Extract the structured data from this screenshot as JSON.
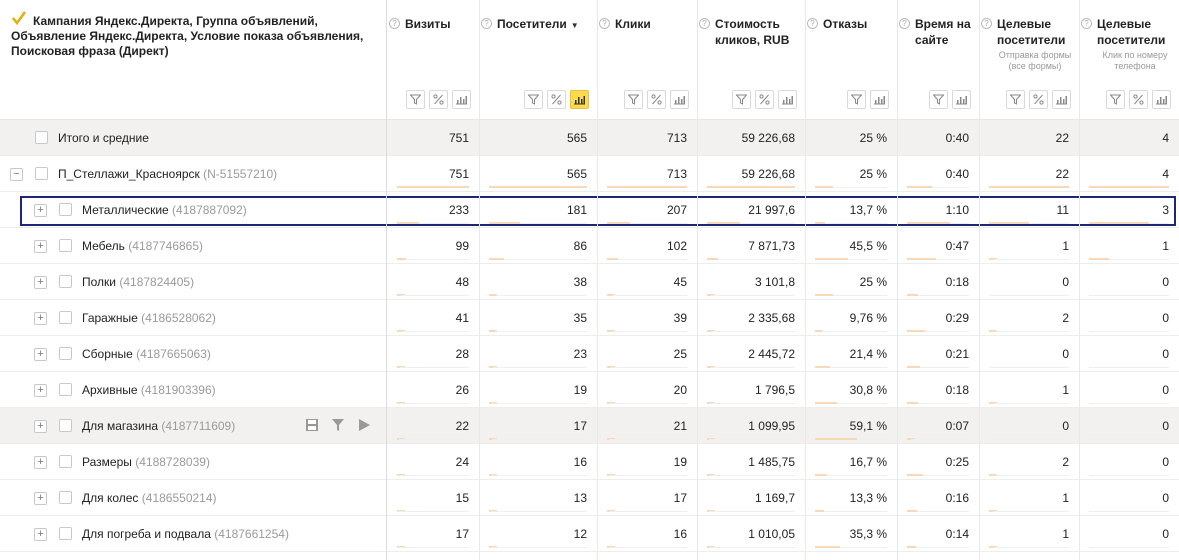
{
  "dimension_header": "Кампания Яндекс.Директа, Группа объявлений, Объявление Яндекс.Директа, Условие показа объявления, Поисковая фраза (Директ)",
  "metrics": [
    {
      "key": "visits",
      "title": "Визиты",
      "sub": ""
    },
    {
      "key": "visitors",
      "title": "Посетители",
      "sub": "",
      "sort": "▼"
    },
    {
      "key": "clicks",
      "title": "Клики",
      "sub": ""
    },
    {
      "key": "cost",
      "title": "Стоимость кликов, RUB",
      "sub": ""
    },
    {
      "key": "bounce",
      "title": "Отказы",
      "sub": ""
    },
    {
      "key": "time",
      "title": "Время на сайте",
      "sub": ""
    },
    {
      "key": "goal1",
      "title": "Целевые посетители",
      "sub": "Отправка формы (все формы)"
    },
    {
      "key": "goal2",
      "title": "Целевые посетители",
      "sub": "Клик по номеру телефона"
    }
  ],
  "rows": [
    {
      "type": "total",
      "name": "Итого и средние",
      "id": "",
      "values": [
        "751",
        "565",
        "713",
        "59 226,68",
        "25 %",
        "0:40",
        "22",
        "4"
      ],
      "fill": [
        1,
        1,
        1,
        1,
        0.25,
        0.4,
        1,
        1
      ]
    },
    {
      "type": "campaign",
      "name": "П_Стеллажи_Красноярск",
      "id": "(N-51557210)",
      "toggle": "−",
      "values": [
        "751",
        "565",
        "713",
        "59 226,68",
        "25 %",
        "0:40",
        "22",
        "4"
      ],
      "fill": [
        1,
        1,
        1,
        1,
        0.25,
        0.4,
        1,
        1
      ]
    },
    {
      "type": "group",
      "name": "Металлические",
      "id": "(4187887092)",
      "toggle": "+",
      "selected": true,
      "values": [
        "233",
        "181",
        "207",
        "21 997,6",
        "13,7 %",
        "1:10",
        "11",
        "3"
      ],
      "fill": [
        0.31,
        0.32,
        0.29,
        0.37,
        0.14,
        0.7,
        0.5,
        0.75
      ]
    },
    {
      "type": "group",
      "name": "Мебель",
      "id": "(4187746865)",
      "toggle": "+",
      "values": [
        "99",
        "86",
        "102",
        "7 871,73",
        "45,5 %",
        "0:47",
        "1",
        "1"
      ],
      "fill": [
        0.13,
        0.15,
        0.14,
        0.13,
        0.46,
        0.47,
        0.05,
        0.25
      ]
    },
    {
      "type": "group",
      "name": "Полки",
      "id": "(4187824405)",
      "toggle": "+",
      "values": [
        "48",
        "38",
        "45",
        "3 101,8",
        "25 %",
        "0:18",
        "0",
        "0"
      ],
      "fill": [
        0.06,
        0.07,
        0.06,
        0.05,
        0.25,
        0.18,
        0,
        0
      ]
    },
    {
      "type": "group",
      "name": "Гаражные",
      "id": "(4186528062)",
      "toggle": "+",
      "values": [
        "41",
        "35",
        "39",
        "2 335,68",
        "9,76 %",
        "0:29",
        "2",
        "0"
      ],
      "fill": [
        0.05,
        0.06,
        0.05,
        0.04,
        0.1,
        0.29,
        0.09,
        0
      ]
    },
    {
      "type": "group",
      "name": "Сборные",
      "id": "(4187665063)",
      "toggle": "+",
      "values": [
        "28",
        "23",
        "25",
        "2 445,72",
        "21,4 %",
        "0:21",
        "0",
        "0"
      ],
      "fill": [
        0.04,
        0.04,
        0.04,
        0.04,
        0.21,
        0.21,
        0,
        0
      ]
    },
    {
      "type": "group",
      "name": "Архивные",
      "id": "(4181903396)",
      "toggle": "+",
      "values": [
        "26",
        "19",
        "20",
        "1 796,5",
        "30,8 %",
        "0:18",
        "1",
        "0"
      ],
      "fill": [
        0.03,
        0.03,
        0.03,
        0.03,
        0.31,
        0.18,
        0.05,
        0
      ]
    },
    {
      "type": "group",
      "name": "Для магазина",
      "id": "(4187711609)",
      "toggle": "+",
      "hover": true,
      "values": [
        "22",
        "17",
        "21",
        "1 099,95",
        "59,1 %",
        "0:07",
        "0",
        "0"
      ],
      "fill": [
        0.03,
        0.03,
        0.03,
        0.02,
        0.59,
        0.07,
        0,
        0
      ]
    },
    {
      "type": "group",
      "name": "Размеры",
      "id": "(4188728039)",
      "toggle": "+",
      "values": [
        "24",
        "16",
        "19",
        "1 485,75",
        "16,7 %",
        "0:25",
        "2",
        "0"
      ],
      "fill": [
        0.03,
        0.03,
        0.03,
        0.03,
        0.17,
        0.25,
        0.09,
        0
      ]
    },
    {
      "type": "group",
      "name": "Для колес",
      "id": "(4186550214)",
      "toggle": "+",
      "values": [
        "15",
        "13",
        "17",
        "1 169,7",
        "13,3 %",
        "0:16",
        "1",
        "0"
      ],
      "fill": [
        0.02,
        0.02,
        0.02,
        0.02,
        0.13,
        0.16,
        0.05,
        0
      ]
    },
    {
      "type": "group",
      "name": "Для погреба и подвала",
      "id": "(4187661254)",
      "toggle": "+",
      "values": [
        "17",
        "12",
        "16",
        "1 010,05",
        "35,3 %",
        "0:14",
        "1",
        "0"
      ],
      "fill": [
        0.02,
        0.02,
        0.02,
        0.02,
        0.35,
        0.14,
        0.05,
        0
      ]
    }
  ],
  "colors": {
    "accent_yellow": "#ffdb4d",
    "bar": "#f7d9b7",
    "selection": "#1e2774",
    "total_bg": "#f2f1ef"
  },
  "icons": {
    "header_check": "checkmark-icon",
    "filter": "filter-icon",
    "percent": "percent-icon",
    "chart": "bar-chart-icon",
    "row_actions": [
      "save-icon",
      "filter-icon",
      "play-icon"
    ]
  }
}
